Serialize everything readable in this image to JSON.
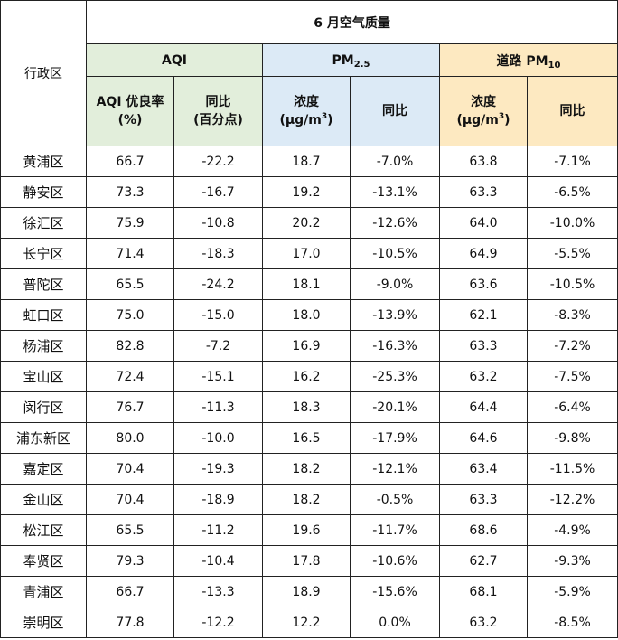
{
  "title": "6 月空气质量",
  "district_header": "行政区",
  "groups": {
    "aqi": "AQI",
    "pm25": {
      "base": "PM",
      "sub": "2.5"
    },
    "pm10": {
      "base": "道路 PM",
      "sub": "10"
    }
  },
  "subheaders": {
    "aqi_rate": {
      "line1": "AQI 优良率",
      "line2": "(%)"
    },
    "aqi_yoy": {
      "line1": "同比",
      "line2": "(百分点)"
    },
    "conc": {
      "line1": "浓度",
      "unit_pre": "(μg/m",
      "unit_sup": "3",
      "unit_post": ")"
    },
    "yoy": "同比"
  },
  "colors": {
    "aqi_bg": "#e2eedb",
    "pm25_bg": "#dceaf6",
    "pm10_bg": "#fde9c1",
    "border": "#222222"
  },
  "rows": [
    [
      "黄浦区",
      "66.7",
      "-22.2",
      "18.7",
      "-7.0%",
      "63.8",
      "-7.1%"
    ],
    [
      "静安区",
      "73.3",
      "-16.7",
      "19.2",
      "-13.1%",
      "63.3",
      "-6.5%"
    ],
    [
      "徐汇区",
      "75.9",
      "-10.8",
      "20.2",
      "-12.6%",
      "64.0",
      "-10.0%"
    ],
    [
      "长宁区",
      "71.4",
      "-18.3",
      "17.0",
      "-10.5%",
      "64.9",
      "-5.5%"
    ],
    [
      "普陀区",
      "65.5",
      "-24.2",
      "18.1",
      "-9.0%",
      "63.6",
      "-10.5%"
    ],
    [
      "虹口区",
      "75.0",
      "-15.0",
      "18.0",
      "-13.9%",
      "62.1",
      "-8.3%"
    ],
    [
      "杨浦区",
      "82.8",
      "-7.2",
      "16.9",
      "-16.3%",
      "63.3",
      "-7.2%"
    ],
    [
      "宝山区",
      "72.4",
      "-15.1",
      "16.2",
      "-25.3%",
      "63.2",
      "-7.5%"
    ],
    [
      "闵行区",
      "76.7",
      "-11.3",
      "18.3",
      "-20.1%",
      "64.4",
      "-6.4%"
    ],
    [
      "浦东新区",
      "80.0",
      "-10.0",
      "16.5",
      "-17.9%",
      "64.6",
      "-9.8%"
    ],
    [
      "嘉定区",
      "70.4",
      "-19.3",
      "18.2",
      "-12.1%",
      "63.4",
      "-11.5%"
    ],
    [
      "金山区",
      "70.4",
      "-18.9",
      "18.2",
      "-0.5%",
      "63.3",
      "-12.2%"
    ],
    [
      "松江区",
      "65.5",
      "-11.2",
      "19.6",
      "-11.7%",
      "68.6",
      "-4.9%"
    ],
    [
      "奉贤区",
      "79.3",
      "-10.4",
      "17.8",
      "-10.6%",
      "62.7",
      "-9.3%"
    ],
    [
      "青浦区",
      "66.7",
      "-13.3",
      "18.9",
      "-15.6%",
      "68.1",
      "-5.9%"
    ],
    [
      "崇明区",
      "77.8",
      "-12.2",
      "12.2",
      "0.0%",
      "63.2",
      "-8.5%"
    ]
  ]
}
